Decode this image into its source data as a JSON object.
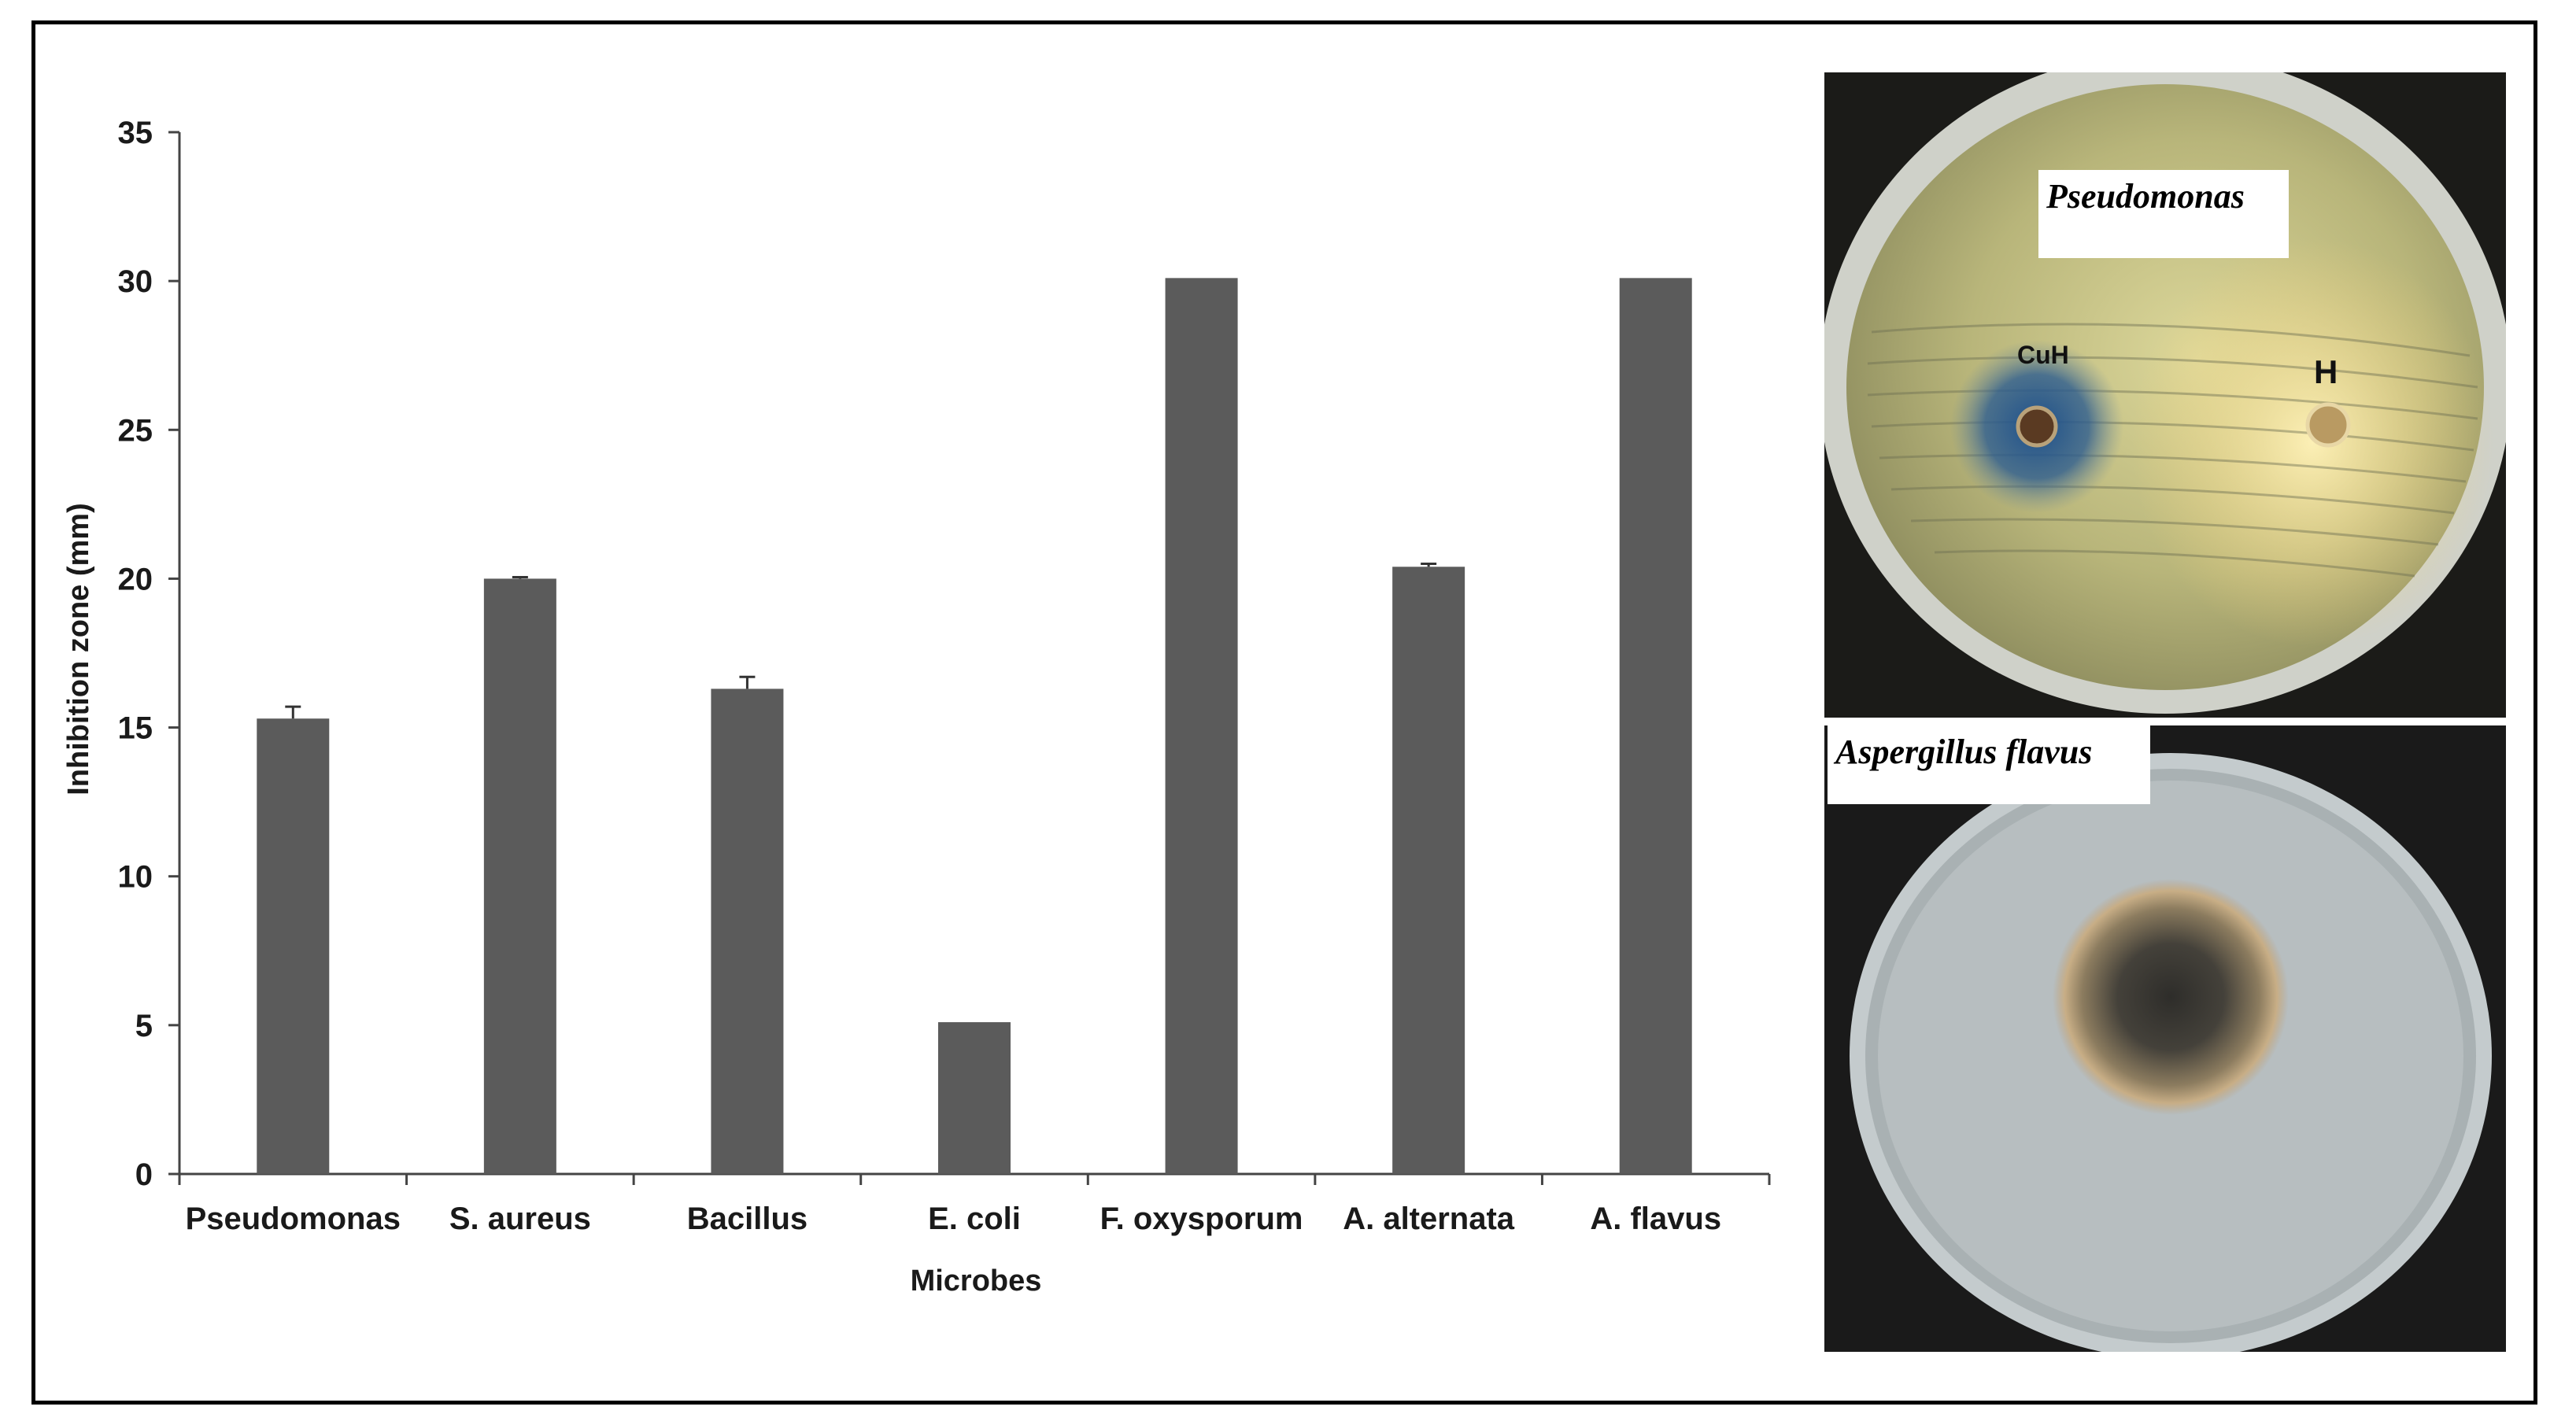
{
  "chart_data": {
    "type": "bar",
    "categories": [
      "Pseudomonas",
      "S. aureus",
      "Bacillus",
      "E. coli",
      "F. oxysporum",
      "A. alternata",
      "A. flavus"
    ],
    "values": [
      15.3,
      20.0,
      16.3,
      5.1,
      30.1,
      20.4,
      30.1
    ],
    "errors": [
      0.4,
      0.05,
      0.4,
      0,
      0,
      0.1,
      0
    ],
    "xlabel": "Microbes",
    "ylabel": "Inhibition zone (mm)",
    "ylim": [
      0,
      35
    ],
    "yticks": [
      0,
      5,
      10,
      15,
      20,
      25,
      30,
      35
    ],
    "bar_color": "#5b5b5b",
    "grid": false,
    "legend": "none"
  },
  "photos": {
    "top": {
      "label": "Pseudomonas",
      "well_left": "CuH",
      "well_right": "H"
    },
    "bottom": {
      "label": "Aspergillus flavus"
    }
  }
}
